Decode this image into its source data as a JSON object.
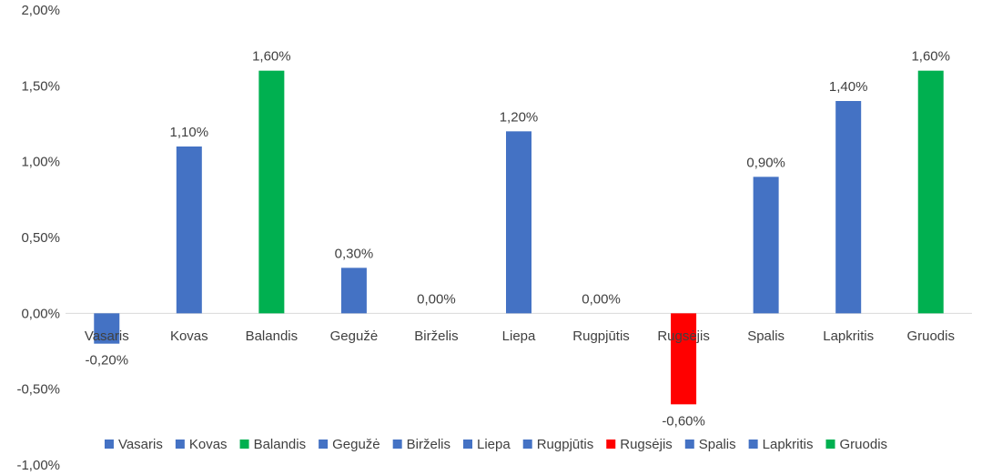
{
  "chart_data": {
    "type": "bar",
    "categories": [
      "Vasaris",
      "Kovas",
      "Balandis",
      "Gegužė",
      "Birželis",
      "Liepa",
      "Rugpjūtis",
      "Rugsėjis",
      "Spalis",
      "Lapkritis",
      "Gruodis"
    ],
    "values": [
      -0.2,
      1.1,
      1.6,
      0.3,
      0.0,
      1.2,
      0.0,
      -0.6,
      0.9,
      1.4,
      1.6
    ],
    "data_labels": [
      "-0,20%",
      "1,10%",
      "1,60%",
      "0,30%",
      "0,00%",
      "1,20%",
      "0,00%",
      "-0,60%",
      "0,90%",
      "1,40%",
      "1,60%"
    ],
    "colors": [
      "#4472C4",
      "#4472C4",
      "#00B050",
      "#4472C4",
      "#4472C4",
      "#4472C4",
      "#4472C4",
      "#FF0000",
      "#4472C4",
      "#4472C4",
      "#00B050"
    ],
    "y_ticks": [
      2.0,
      1.5,
      1.0,
      0.5,
      0.0,
      -0.5,
      -1.0
    ],
    "y_tick_labels": [
      "2,00%",
      "1,50%",
      "1,00%",
      "0,50%",
      "0,00%",
      "-0,50%",
      "-1,00%"
    ],
    "ylim": [
      -1.0,
      2.0
    ],
    "title": "",
    "xlabel": "",
    "ylabel": "",
    "grid": false,
    "legend_position": "bottom"
  }
}
